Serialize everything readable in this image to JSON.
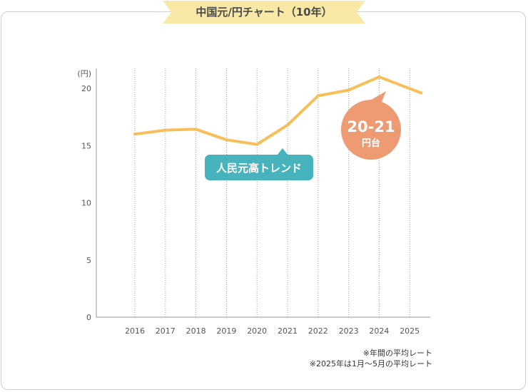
{
  "title": "中国元/円チャート（10年）",
  "chart_data": {
    "type": "line",
    "ylabel": "(円)",
    "ylim": [
      0,
      20
    ],
    "yticks": [
      0,
      5,
      10,
      15,
      20
    ],
    "x": [
      "2016",
      "2017",
      "2018",
      "2019",
      "2020",
      "2021",
      "2022",
      "2023",
      "2024",
      "2025"
    ],
    "values": [
      16.0,
      16.35,
      16.43,
      15.5,
      15.1,
      16.8,
      19.35,
      19.85,
      21.0,
      19.6
    ],
    "line_color": "#f6bf5a",
    "grid": "vertical dotted"
  },
  "callouts": {
    "trend": {
      "text": "人民元高トレンド",
      "color": "#46b3bd"
    },
    "range": {
      "value": "20-21",
      "unit": "円台",
      "color": "#ee9a73"
    }
  },
  "notes": {
    "line1": "※年間の平均レート",
    "line2": "※2025年は1月〜5月の平均レート"
  }
}
